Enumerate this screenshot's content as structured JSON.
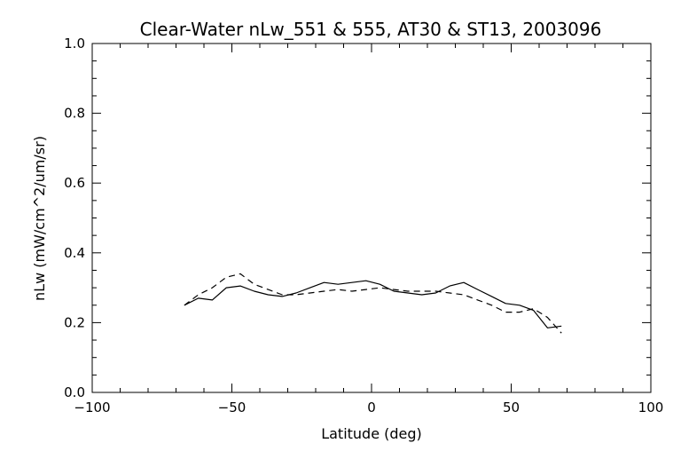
{
  "chart_data": {
    "type": "line",
    "title": "Clear-Water nLw_551 & 555, AT30 & ST13, 2003096",
    "xlabel": "Latitude (deg)",
    "ylabel": "nLw (mW/cm^2/um/sr)",
    "xlim": [
      -100,
      100
    ],
    "ylim": [
      0.0,
      1.0
    ],
    "xticks": [
      "-100",
      "-50",
      "0",
      "50",
      "100"
    ],
    "yticks": [
      "0.0",
      "0.2",
      "0.4",
      "0.6",
      "0.8",
      "1.0"
    ],
    "grid": false,
    "series": [
      {
        "style": "solid",
        "color": "#000000",
        "x": [
          -67,
          -62,
          -57,
          -52,
          -47,
          -42,
          -37,
          -32,
          -27,
          -22,
          -17,
          -12,
          -7,
          -2,
          3,
          8,
          13,
          18,
          23,
          28,
          33,
          38,
          43,
          48,
          53,
          58,
          63,
          68
        ],
        "y": [
          0.25,
          0.27,
          0.265,
          0.3,
          0.305,
          0.29,
          0.28,
          0.275,
          0.285,
          0.3,
          0.315,
          0.31,
          0.315,
          0.32,
          0.31,
          0.29,
          0.285,
          0.28,
          0.285,
          0.305,
          0.315,
          0.295,
          0.275,
          0.255,
          0.25,
          0.235,
          0.185,
          0.19
        ]
      },
      {
        "style": "dashed",
        "color": "#000000",
        "x": [
          -67,
          -62,
          -57,
          -52,
          -47,
          -42,
          -37,
          -32,
          -27,
          -22,
          -17,
          -12,
          -7,
          -2,
          3,
          8,
          13,
          18,
          23,
          28,
          33,
          38,
          43,
          48,
          53,
          58,
          63,
          68
        ],
        "y": [
          0.25,
          0.28,
          0.3,
          0.33,
          0.34,
          0.31,
          0.295,
          0.28,
          0.28,
          0.285,
          0.29,
          0.295,
          0.29,
          0.295,
          0.3,
          0.295,
          0.29,
          0.29,
          0.29,
          0.285,
          0.28,
          0.265,
          0.25,
          0.23,
          0.23,
          0.24,
          0.215,
          0.17
        ]
      }
    ]
  }
}
